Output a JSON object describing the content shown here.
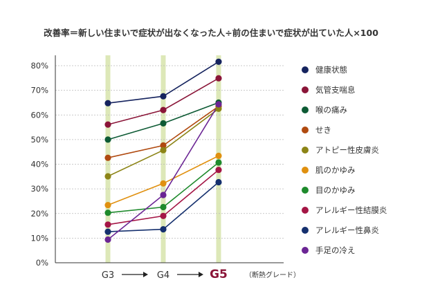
{
  "chart_data": {
    "type": "line",
    "title": "改善率＝新しい住まいで症状が出なくなった人÷前の住まいで症状が出ていた人×100",
    "categories": [
      "G3",
      "G4",
      "G5"
    ],
    "highlight_category": "G5",
    "xaxis_note": "（断熱グレード）",
    "ylim": [
      0,
      80
    ],
    "yticks": [
      0,
      10,
      20,
      30,
      40,
      50,
      60,
      70,
      80
    ],
    "ytick_labels": [
      "0%",
      "10%",
      "20%",
      "30%",
      "40%",
      "50%",
      "60%",
      "70%",
      "80%"
    ],
    "grid": "horizontal dashed",
    "legend_position": "right",
    "series": [
      {
        "name": "健康状態",
        "color": "#15235e",
        "values": [
          64.8,
          67.6,
          81.6
        ]
      },
      {
        "name": "気管支喘息",
        "color": "#8a1538",
        "values": [
          56.1,
          62.0,
          74.9
        ]
      },
      {
        "name": "喉の痛み",
        "color": "#0d5a34",
        "values": [
          50.0,
          56.6,
          65.0
        ]
      },
      {
        "name": "せき",
        "color": "#b04a10",
        "values": [
          42.6,
          47.6,
          63.5
        ]
      },
      {
        "name": "アトピー性皮膚炎",
        "color": "#8c8416",
        "values": [
          35.1,
          45.7,
          62.5
        ]
      },
      {
        "name": "肌のかゆみ",
        "color": "#e0900f",
        "values": [
          23.4,
          32.2,
          43.4
        ]
      },
      {
        "name": "目のかゆみ",
        "color": "#1e8a2c",
        "values": [
          20.3,
          22.6,
          40.7
        ]
      },
      {
        "name": "アレルギー性結膜炎",
        "color": "#a41545",
        "values": [
          15.5,
          19.0,
          37.7
        ]
      },
      {
        "name": "アレルギー性鼻炎",
        "color": "#15306e",
        "values": [
          12.6,
          13.6,
          32.7
        ]
      },
      {
        "name": "手足の冷え",
        "color": "#6b2594",
        "values": [
          9.4,
          27.5,
          64.3
        ]
      }
    ]
  },
  "colors": {
    "highlight_band": "#dde8b8",
    "highlight_label": "#8a1538",
    "axis": "#333333",
    "grid": "#b8b8b8",
    "text": "#333333"
  }
}
